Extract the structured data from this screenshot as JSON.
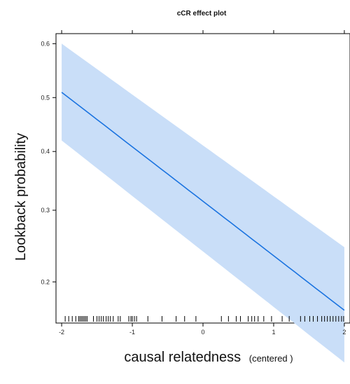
{
  "chart_data": {
    "type": "line",
    "title": "cCR effect plot",
    "xlabel": "causal relatedness",
    "xlabel_note": "(centered )",
    "ylabel": "Lookback probability",
    "xlim": [
      -2.08,
      2.08
    ],
    "ylim_display": [
      0.155,
      0.618
    ],
    "y_scale": "logit",
    "x_ticks": [
      -2,
      -1,
      0,
      1,
      2
    ],
    "y_ticks": [
      0.2,
      0.3,
      0.4,
      0.5,
      0.6
    ],
    "series": [
      {
        "x": [
          -2,
          2
        ],
        "y": [
          0.51,
          0.168
        ],
        "lower": [
          0.42,
          0.12
        ],
        "upper": [
          0.6,
          0.245
        ]
      }
    ],
    "rug_x": [
      -1.95,
      -1.9,
      -1.85,
      -1.8,
      -1.76,
      -1.74,
      -1.72,
      -1.7,
      -1.68,
      -1.66,
      -1.64,
      -1.55,
      -1.5,
      -1.47,
      -1.44,
      -1.41,
      -1.37,
      -1.34,
      -1.31,
      -1.27,
      -1.2,
      -1.17,
      -1.05,
      -1.02,
      -1.0,
      -0.97,
      -0.94,
      -0.78,
      -0.58,
      -0.38,
      -0.26,
      -0.1,
      0.26,
      0.36,
      0.47,
      0.53,
      0.64,
      0.69,
      0.73,
      0.78,
      0.86,
      0.97,
      1.12,
      1.22,
      1.38,
      1.44,
      1.51,
      1.56,
      1.62,
      1.68,
      1.72,
      1.76,
      1.8,
      1.84,
      1.88,
      1.92,
      1.96,
      1.99
    ],
    "grid": false,
    "legend": "none",
    "colors": {
      "line": "#1a73e0",
      "band": "#c9def8"
    }
  }
}
